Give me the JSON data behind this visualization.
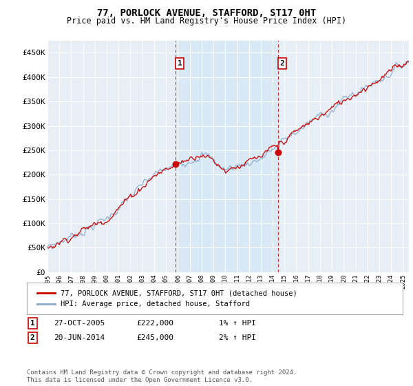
{
  "title": "77, PORLOCK AVENUE, STAFFORD, ST17 0HT",
  "subtitle": "Price paid vs. HM Land Registry's House Price Index (HPI)",
  "ylabel_ticks": [
    "£0",
    "£50K",
    "£100K",
    "£150K",
    "£200K",
    "£250K",
    "£300K",
    "£350K",
    "£400K",
    "£450K"
  ],
  "ytick_values": [
    0,
    50000,
    100000,
    150000,
    200000,
    250000,
    300000,
    350000,
    400000,
    450000
  ],
  "ylim": [
    0,
    475000
  ],
  "xlim_start": 1995.0,
  "xlim_end": 2025.5,
  "line1_color": "#cc0000",
  "line2_color": "#88aacc",
  "purchase1_x": 2005.82,
  "purchase1_y": 222000,
  "purchase2_x": 2014.47,
  "purchase2_y": 245000,
  "annotation1_label": "1",
  "annotation2_label": "2",
  "legend_label1": "77, PORLOCK AVENUE, STAFFORD, ST17 0HT (detached house)",
  "legend_label2": "HPI: Average price, detached house, Stafford",
  "table_row1": [
    "1",
    "27-OCT-2005",
    "£222,000",
    "1% ↑ HPI"
  ],
  "table_row2": [
    "2",
    "20-JUN-2014",
    "£245,000",
    "2% ↑ HPI"
  ],
  "footer": "Contains HM Land Registry data © Crown copyright and database right 2024.\nThis data is licensed under the Open Government Licence v3.0.",
  "shaded_region_color": "#d8e8f5",
  "plot_bg_color": "#e8eef5"
}
